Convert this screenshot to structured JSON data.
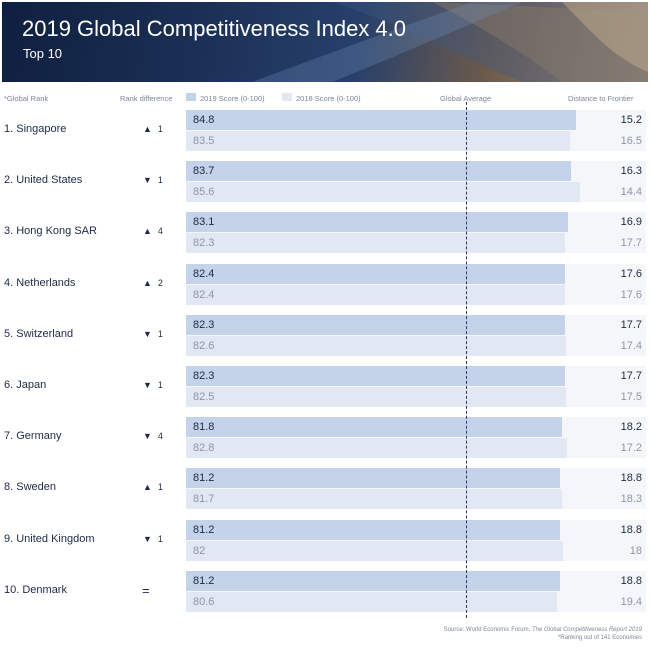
{
  "header": {
    "title": "2019 Global Competitiveness Index 4.0",
    "subtitle": "Top 10"
  },
  "columns": {
    "rank": "*Global Rank",
    "rank_diff": "Rank difference",
    "score2019": "2019 Score (0-100)",
    "score2018": "2018 Score (0-100)",
    "global_avg": "Global Average",
    "distance": "Distance to Frontier"
  },
  "colors": {
    "bar_2019": "#c4d2ea",
    "bar_2018": "#e1e8f4",
    "text_primary": "#1e2a44",
    "text_secondary": "#8e96a6"
  },
  "footer": {
    "source_prefix": "Source:  World Economic Forum,",
    "source_title": "The Global Competitiveness Report 2019",
    "note": "*Ranking out of 141 Economies"
  },
  "chart_data": {
    "type": "bar",
    "title": "2019 Global Competitiveness Index 4.0",
    "subtitle": "Top 10",
    "xlim": [
      0,
      100
    ],
    "series": [
      {
        "name": "2019 Score (0-100)",
        "values": [
          84.8,
          83.7,
          83.1,
          82.4,
          82.3,
          82.3,
          81.8,
          81.2,
          81.2,
          81.2
        ]
      },
      {
        "name": "2018 Score (0-100)",
        "values": [
          83.5,
          85.6,
          82.3,
          82.4,
          82.6,
          82.5,
          82.8,
          81.7,
          82,
          80.6
        ]
      }
    ],
    "rows": [
      {
        "rank_label": "1. Singapore",
        "diff_dir": "up",
        "diff": "1",
        "s2019": 84.8,
        "s2018": 83.5,
        "d2019": "15.2",
        "d2018": "16.5"
      },
      {
        "rank_label": "2. United States",
        "diff_dir": "down",
        "diff": "1",
        "s2019": 83.7,
        "s2018": 85.6,
        "d2019": "16.3",
        "d2018": "14.4"
      },
      {
        "rank_label": "3. Hong Kong SAR",
        "diff_dir": "up",
        "diff": "4",
        "s2019": 83.1,
        "s2018": 82.3,
        "d2019": "16.9",
        "d2018": "17.7"
      },
      {
        "rank_label": "4. Netherlands",
        "diff_dir": "up",
        "diff": "2",
        "s2019": 82.4,
        "s2018": 82.4,
        "d2019": "17.6",
        "d2018": "17.6"
      },
      {
        "rank_label": "5. Switzerland",
        "diff_dir": "down",
        "diff": "1",
        "s2019": 82.3,
        "s2018": 82.6,
        "d2019": "17.7",
        "d2018": "17.4"
      },
      {
        "rank_label": "6. Japan",
        "diff_dir": "down",
        "diff": "1",
        "s2019": 82.3,
        "s2018": 82.5,
        "d2019": "17.7",
        "d2018": "17.5"
      },
      {
        "rank_label": "7. Germany",
        "diff_dir": "down",
        "diff": "4",
        "s2019": 81.8,
        "s2018": 82.8,
        "d2019": "18.2",
        "d2018": "17.2"
      },
      {
        "rank_label": "8. Sweden",
        "diff_dir": "up",
        "diff": "1",
        "s2019": 81.2,
        "s2018": 81.7,
        "d2019": "18.8",
        "d2018": "18.3"
      },
      {
        "rank_label": "9. United Kingdom",
        "diff_dir": "down",
        "diff": "1",
        "s2019": 81.2,
        "s2018": 82,
        "d2019": "18.8",
        "d2018": "18"
      },
      {
        "rank_label": "10. Denmark",
        "diff_dir": "equal",
        "diff": "=",
        "s2019": 81.2,
        "s2018": 80.6,
        "d2019": "18.8",
        "d2018": "19.4"
      }
    ]
  }
}
